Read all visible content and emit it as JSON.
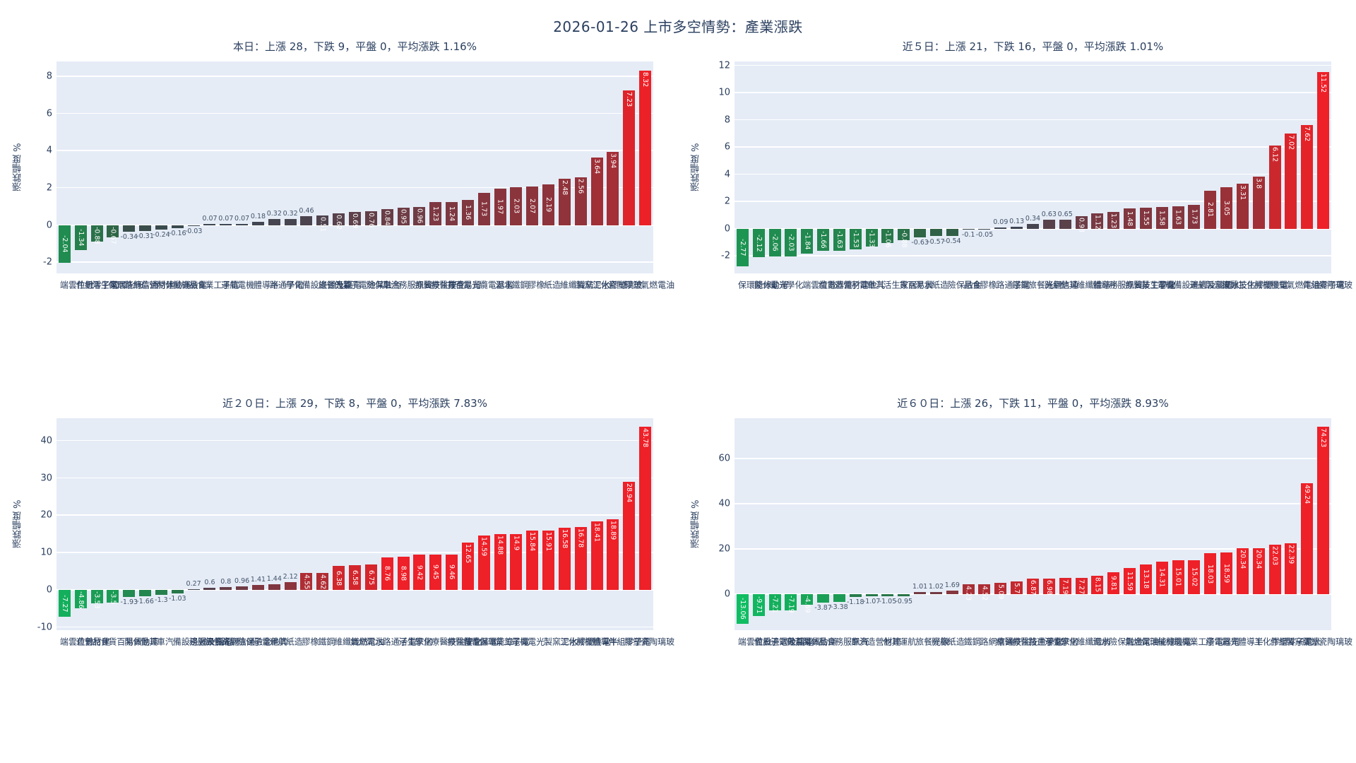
{
  "main_title": "2026-01-26 上市多空情勢：產業漲跌",
  "colors": {
    "plot_background": "#e5ecf6",
    "grid": "#ffffff",
    "text": "#2a3f5f",
    "up_max_red": "#ee2028",
    "down_max_green": "#10bd62",
    "neutral_dark": "#3b4754",
    "inside_label": "#ffffff"
  },
  "chart_data": [
    {
      "type": "bar",
      "title": "本日：上漲 28，下跌 9，平盤 0，平均漲跌 1.16%",
      "ylabel": "漲跌幅度 %",
      "yticks": [
        8,
        6,
        4,
        2,
        0,
        -2
      ],
      "ylim": [
        -2.6,
        8.8
      ],
      "grid": true,
      "categories": [
        "數位雲端",
        "電子零組件",
        "居家生活",
        "綠能環保",
        "通信網路",
        "建材營造",
        "運動休閒",
        "電機機械",
        "食品",
        "電子工業",
        "航運",
        "機電",
        "半導體",
        "電子通路",
        "化學",
        "電腦及週邊設備",
        "觀光餐旅",
        "其他",
        "其他電子",
        "金融保險",
        "汽車",
        "資訊服務",
        "化學生技醫療",
        "生技醫療",
        "貿易百貨",
        "光電",
        "電器電纜",
        "水泥",
        "鋼鐵",
        "橡膠",
        "造紙",
        "紡織纖維",
        "水泥窯製",
        "塑膠化工",
        "玻璃陶瓷",
        "塑膠",
        "油電燃氣"
      ],
      "values": [
        -2.04,
        -1.34,
        -0.88,
        -0.67,
        -0.34,
        -0.31,
        -0.24,
        -0.16,
        -0.03,
        0.07,
        0.07,
        0.07,
        0.18,
        0.32,
        0.32,
        0.46,
        0.51,
        0.62,
        0.69,
        0.76,
        0.84,
        0.95,
        0.96,
        1.23,
        1.24,
        1.36,
        1.73,
        1.97,
        2.03,
        2.07,
        2.19,
        2.48,
        2.56,
        3.64,
        3.94,
        7.23,
        8.32
      ]
    },
    {
      "type": "bar",
      "title": "近５日：上漲 21，下跌 16，平盤 0，平均漲跌 1.01%",
      "ylabel": "漲跌幅度 %",
      "yticks": [
        12,
        10,
        8,
        6,
        4,
        2,
        0,
        -2
      ],
      "ylim": [
        -3.3,
        12.3
      ],
      "grid": true,
      "categories": [
        "綠能環保",
        "運動休閒",
        "光電",
        "化學",
        "數位雲端",
        "電器電纜",
        "建材營造",
        "其他電子",
        "汽車",
        "居家生活",
        "貿易百貨",
        "水泥",
        "造紙",
        "金融保險",
        "食品",
        "橡膠",
        "電子通路",
        "鋼鐵",
        "觀光餐旅",
        "通信網路",
        "其他",
        "紡織纖維",
        "半導體",
        "資訊服務",
        "化學生技醫療",
        "電子工業",
        "機電",
        "電腦及週邊設備",
        "航運",
        "水泥窯製",
        "生技醫療",
        "塑膠化工",
        "電機機械",
        "塑膠",
        "油電燃氣",
        "電子零組件",
        "玻璃陶瓷"
      ],
      "values": [
        -2.77,
        -2.12,
        -2.06,
        -2.03,
        -1.84,
        -1.66,
        -1.63,
        -1.53,
        -1.33,
        -1.06,
        -0.88,
        -0.63,
        -0.57,
        -0.54,
        -0.1,
        -0.05,
        0.09,
        0.13,
        0.34,
        0.63,
        0.65,
        0.93,
        1.12,
        1.23,
        1.48,
        1.55,
        1.58,
        1.63,
        1.73,
        2.81,
        3.05,
        3.31,
        3.8,
        6.12,
        7.02,
        7.62,
        11.52
      ]
    },
    {
      "type": "bar",
      "title": "近２０日：上漲 29，下跌 8，平盤 0，平均漲跌 7.83%",
      "ylabel": "漲跌幅度 %",
      "yticks": [
        40,
        30,
        20,
        10,
        0,
        -10
      ],
      "ylim": [
        -10.8,
        46
      ],
      "grid": true,
      "categories": [
        "數位雲端",
        "建材營造",
        "食品",
        "貿易百貨",
        "運動休閒",
        "其他",
        "汽車",
        "電腦及週邊設備",
        "資訊服務",
        "觀光餐旅",
        "通信網路",
        "金融保險",
        "其他電子",
        "航運",
        "造紙",
        "橡膠",
        "鋼鐵",
        "紡織纖維",
        "油電燃氣",
        "水泥",
        "電子通路",
        "居家生活",
        "化學",
        "化學生技醫療",
        "生技醫療",
        "電器電纜",
        "綠能環保",
        "電子工業",
        "機電",
        "光電",
        "水泥窯製",
        "塑膠化工",
        "電機機械",
        "半導體",
        "電子零組件",
        "塑膠",
        "玻璃陶瓷"
      ],
      "values": [
        -7.27,
        -4.86,
        -3.53,
        -3.5,
        -1.93,
        -1.66,
        -1.3,
        -1.03,
        0.27,
        0.6,
        0.8,
        0.96,
        1.41,
        1.44,
        2.12,
        4.55,
        4.62,
        6.38,
        6.58,
        6.75,
        8.76,
        8.98,
        9.42,
        9.45,
        9.46,
        12.65,
        14.59,
        14.88,
        14.9,
        15.84,
        15.91,
        16.58,
        16.78,
        18.41,
        18.89,
        28.94,
        43.78
      ]
    },
    {
      "type": "bar",
      "title": "近６０日：上漲 26，下跌 11，平盤 0，平均漲跌 8.93%",
      "ylabel": "漲跌幅度 %",
      "yticks": [
        60,
        40,
        20,
        0
      ],
      "ylim": [
        -16,
        78
      ],
      "grid": true,
      "categories": [
        "數位雲端",
        "電腦及週邊設備",
        "其他電子",
        "貿易百貨",
        "運動休閒",
        "食品",
        "資訊服務",
        "汽車",
        "建材營造",
        "其他",
        "航運",
        "觀光餐旅",
        "橡膠",
        "造紙",
        "鋼鐵",
        "通信網路",
        "生技醫療",
        "化學生技醫療",
        "電子通路",
        "居家生活",
        "化學",
        "紡織纖維",
        "水泥",
        "金融保險",
        "油電燃氣",
        "綠能環保",
        "電機機械",
        "機電",
        "電子工業",
        "電器電纜",
        "光電",
        "半導體",
        "塑膠化工",
        "電子零組件",
        "水泥窯製",
        "塑膠",
        "玻璃陶瓷"
      ],
      "values": [
        -13.06,
        -9.71,
        -7.21,
        -7.19,
        -4.69,
        -3.87,
        -3.38,
        -1.18,
        -1.07,
        -1.05,
        -0.95,
        1.01,
        1.02,
        1.69,
        4.23,
        4.52,
        5.09,
        5.7,
        6.87,
        6.98,
        7.19,
        7.27,
        8.15,
        9.81,
        11.59,
        13.18,
        14.31,
        15.01,
        15.02,
        18.03,
        18.59,
        20.34,
        20.34,
        22.03,
        22.39,
        49.24,
        74.23
      ]
    }
  ]
}
